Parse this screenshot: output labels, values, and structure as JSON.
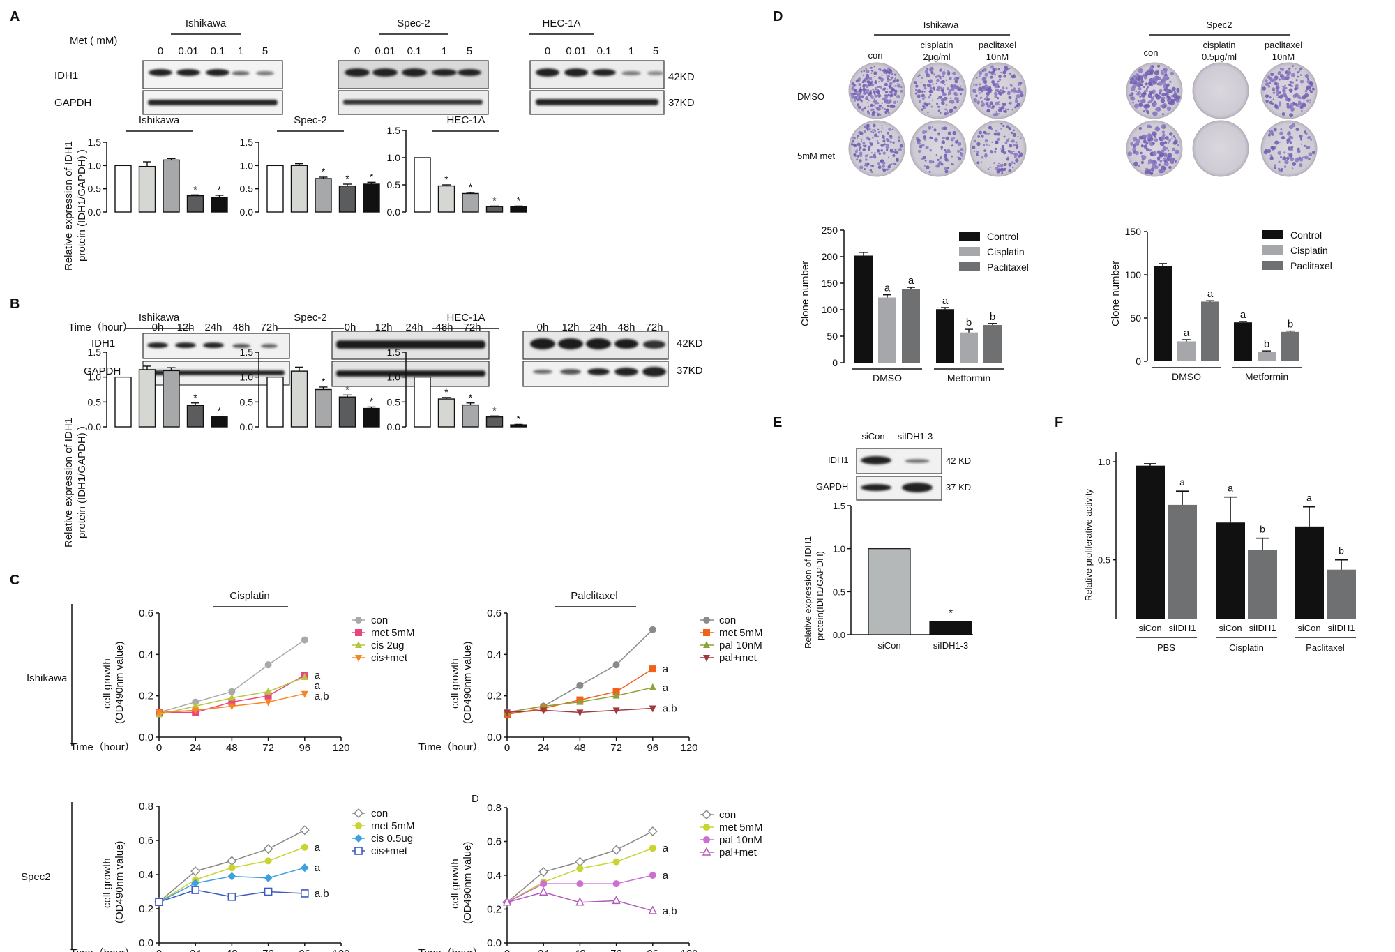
{
  "panels": {
    "A": {
      "letter": "A",
      "met_label": "Met ( mM)",
      "lanes": [
        "0",
        "0.01",
        "0.1",
        "1",
        "5"
      ],
      "cells": [
        "Ishikawa",
        "Spec-2",
        "HEC-1A"
      ],
      "row_labels": [
        "IDH1",
        "GAPDH"
      ],
      "kd": [
        "42KD",
        "37KD"
      ],
      "ylabel1": "Relative expression  of IDH1",
      "ylabel2": "protein (IDH1/GAPDH) )"
    },
    "B": {
      "letter": "B",
      "time_label": "Time（hour）",
      "lanes": [
        "0h",
        "12h",
        "24h",
        "48h",
        "72h"
      ],
      "cells": [
        "Ishikawa",
        "Spec-2",
        "HEC-1A"
      ],
      "row_labels": [
        "IDH1",
        "GAPDH"
      ],
      "kd": [
        "42KD",
        "37KD"
      ],
      "ylabel1": "Relative expression  of IDH1",
      "ylabel2": "protein (IDH1/GAPDH) )"
    },
    "C": {
      "letter": "C",
      "headers": [
        "Cisplatin",
        "Palclitaxel"
      ],
      "rows": [
        "Ishikawa",
        "Spec2"
      ],
      "d_label": "D",
      "ylabel1": "cell growth",
      "ylabel2": "(OD490nm value)",
      "xlabel": "Time（hour）"
    },
    "D": {
      "letter": "D",
      "groups": [
        {
          "cell": "Ishikawa",
          "cols": [
            "con",
            "cisplatin",
            "2μg/ml",
            "paclitaxel",
            "10nM"
          ]
        },
        {
          "cell": "Spec2",
          "cols": [
            "con",
            "cisplatin",
            "0.5μg/ml",
            "paclitaxel",
            "10nM"
          ]
        }
      ],
      "rows": [
        "DMSO",
        "5mM met"
      ],
      "ylabel": "Clone number",
      "legend": [
        "Control",
        "Cisplatin",
        "Paclitaxel"
      ],
      "groups_x": [
        "DMSO",
        "Metformin"
      ]
    },
    "E": {
      "letter": "E",
      "lanes": [
        "siCon",
        "siIDH1-3"
      ],
      "row_labels": [
        "IDH1",
        "GAPDH"
      ],
      "kd": [
        "42 KD",
        "37 KD"
      ],
      "ylabel1": "Relative expression  of IDH1",
      "ylabel2": "protein(IDH1/GAPDH)"
    },
    "F": {
      "letter": "F",
      "ylabel": "Relative proliferative activity",
      "groups": [
        "PBS",
        "Cisplatin",
        "Paclitaxel"
      ]
    }
  },
  "chart_data": [
    {
      "id": "A1",
      "type": "bar",
      "title": "Ishikawa",
      "categories": [
        "0",
        "0.01",
        "0.1",
        "1",
        "5"
      ],
      "values": [
        1.0,
        0.98,
        1.12,
        0.35,
        0.32
      ],
      "errors": [
        0,
        0.1,
        0.03,
        0.02,
        0.04
      ],
      "sig": [
        "",
        "",
        "",
        "*",
        "*"
      ],
      "ylim": [
        0,
        1.5
      ],
      "yticks": [
        0.0,
        0.5,
        1.0,
        1.5
      ],
      "colors": [
        "#ffffff",
        "#d5d8d2",
        "#a6a8aa",
        "#5b5c5e",
        "#111111"
      ]
    },
    {
      "id": "A2",
      "type": "bar",
      "title": "Spec-2",
      "categories": [
        "0",
        "0.01",
        "0.1",
        "1",
        "5"
      ],
      "values": [
        1.0,
        1.0,
        0.72,
        0.56,
        0.6
      ],
      "errors": [
        0,
        0.04,
        0.03,
        0.04,
        0.04
      ],
      "sig": [
        "",
        "",
        "*",
        "*",
        "*"
      ],
      "ylim": [
        0,
        1.5
      ],
      "yticks": [
        0.0,
        0.5,
        1.0,
        1.5
      ],
      "colors": [
        "#ffffff",
        "#d5d8d2",
        "#a6a8aa",
        "#5b5c5e",
        "#111111"
      ]
    },
    {
      "id": "A3",
      "type": "bar",
      "title": "HEC-1A",
      "categories": [
        "0",
        "0.01",
        "0.1",
        "1",
        "5"
      ],
      "values": [
        1.0,
        0.48,
        0.34,
        0.1,
        0.1
      ],
      "errors": [
        0,
        0.02,
        0.02,
        0.01,
        0.01
      ],
      "sig": [
        "",
        "*",
        "*",
        "*",
        "*"
      ],
      "ylim": [
        0,
        1.5
      ],
      "yticks": [
        0.0,
        0.5,
        1.0,
        1.5
      ],
      "colors": [
        "#ffffff",
        "#d5d8d2",
        "#a6a8aa",
        "#5b5c5e",
        "#111111"
      ]
    },
    {
      "id": "B1",
      "type": "bar",
      "title": "Ishikawa",
      "categories": [
        "0h",
        "12h",
        "24h",
        "48h",
        "72h"
      ],
      "values": [
        1.0,
        1.15,
        1.13,
        0.43,
        0.2
      ],
      "errors": [
        0,
        0.07,
        0.06,
        0.05,
        0.01
      ],
      "sig": [
        "",
        "",
        "",
        "*",
        "*"
      ],
      "ylim": [
        0,
        1.5
      ],
      "yticks": [
        0.0,
        0.5,
        1.0,
        1.5
      ],
      "colors": [
        "#ffffff",
        "#d5d8d2",
        "#a6a8aa",
        "#5b5c5e",
        "#111111"
      ]
    },
    {
      "id": "B2",
      "type": "bar",
      "title": "Spec-2",
      "categories": [
        "0h",
        "12h",
        "24h",
        "48h",
        "72h"
      ],
      "values": [
        1.0,
        1.12,
        0.75,
        0.6,
        0.37
      ],
      "errors": [
        0,
        0.08,
        0.05,
        0.04,
        0.03
      ],
      "sig": [
        "",
        "",
        "*",
        "*",
        "*"
      ],
      "ylim": [
        0,
        1.5
      ],
      "yticks": [
        0.0,
        0.5,
        1.0,
        1.5
      ],
      "colors": [
        "#ffffff",
        "#d5d8d2",
        "#a6a8aa",
        "#5b5c5e",
        "#111111"
      ]
    },
    {
      "id": "B3",
      "type": "bar",
      "title": "HEC-1A",
      "categories": [
        "0h",
        "12h",
        "24h",
        "48h",
        "72h"
      ],
      "values": [
        1.0,
        0.56,
        0.44,
        0.2,
        0.04
      ],
      "errors": [
        0,
        0.03,
        0.04,
        0.02,
        0.01
      ],
      "sig": [
        "",
        "*",
        "*",
        "*",
        "*"
      ],
      "ylim": [
        0,
        1.5
      ],
      "yticks": [
        0.0,
        0.5,
        1.0,
        1.5
      ],
      "colors": [
        "#ffffff",
        "#d5d8d2",
        "#a6a8aa",
        "#5b5c5e",
        "#111111"
      ]
    },
    {
      "id": "C1",
      "type": "line",
      "title": "Cisplatin",
      "x": [
        0,
        24,
        48,
        72,
        96
      ],
      "xticks": [
        0,
        24,
        48,
        72,
        96,
        120
      ],
      "ylim": [
        0,
        0.6
      ],
      "yticks": [
        0.0,
        0.2,
        0.4,
        0.6
      ],
      "series": [
        {
          "name": "con",
          "color": "#a9a9a9",
          "marker": "circle",
          "values": [
            0.12,
            0.17,
            0.22,
            0.35,
            0.47
          ]
        },
        {
          "name": "met 5mM",
          "color": "#e8457f",
          "marker": "square",
          "values": [
            0.12,
            0.12,
            0.17,
            0.2,
            0.3
          ]
        },
        {
          "name": "cis 2ug",
          "color": "#b6c73e",
          "marker": "triangle",
          "values": [
            0.11,
            0.15,
            0.19,
            0.22,
            0.29
          ]
        },
        {
          "name": "cis+met",
          "color": "#f6861f",
          "marker": "tri-down",
          "values": [
            0.12,
            0.13,
            0.15,
            0.17,
            0.21
          ]
        }
      ],
      "end_labels": [
        "a",
        "a",
        "a,b"
      ]
    },
    {
      "id": "C2",
      "type": "line",
      "title": "Palclitaxel",
      "x": [
        0,
        24,
        48,
        72,
        96
      ],
      "xticks": [
        0,
        24,
        48,
        72,
        96,
        120
      ],
      "ylim": [
        0,
        0.6
      ],
      "yticks": [
        0.0,
        0.2,
        0.4,
        0.6
      ],
      "series": [
        {
          "name": "con",
          "color": "#8a8a8a",
          "marker": "circle",
          "values": [
            0.12,
            0.15,
            0.25,
            0.35,
            0.52
          ]
        },
        {
          "name": "met 5mM",
          "color": "#f2601b",
          "marker": "square",
          "values": [
            0.11,
            0.14,
            0.18,
            0.22,
            0.33
          ]
        },
        {
          "name": "pal 10nM",
          "color": "#8ea13a",
          "marker": "triangle",
          "values": [
            0.12,
            0.15,
            0.17,
            0.2,
            0.24
          ]
        },
        {
          "name": "pal+met",
          "color": "#a2373c",
          "marker": "tri-down",
          "values": [
            0.12,
            0.13,
            0.12,
            0.13,
            0.14
          ]
        }
      ],
      "end_labels": [
        "a",
        "a",
        "a,b"
      ]
    },
    {
      "id": "C3",
      "type": "line",
      "x": [
        0,
        24,
        48,
        72,
        96
      ],
      "xticks": [
        0,
        24,
        48,
        72,
        96,
        120
      ],
      "ylim": [
        0,
        0.8
      ],
      "yticks": [
        0.0,
        0.2,
        0.4,
        0.6,
        0.8
      ],
      "series": [
        {
          "name": "con",
          "color": "#888888",
          "marker": "diamond-open",
          "values": [
            0.24,
            0.42,
            0.48,
            0.55,
            0.66
          ]
        },
        {
          "name": "met 5mM",
          "color": "#c9d430",
          "marker": "circle",
          "values": [
            0.24,
            0.37,
            0.44,
            0.48,
            0.56
          ]
        },
        {
          "name": "cis 0.5ug",
          "color": "#3fa0e0",
          "marker": "diamond",
          "values": [
            0.24,
            0.35,
            0.39,
            0.38,
            0.44
          ]
        },
        {
          "name": "cis+met",
          "color": "#3c59c2",
          "marker": "square-open",
          "values": [
            0.24,
            0.31,
            0.27,
            0.3,
            0.29
          ]
        }
      ],
      "end_labels": [
        "a",
        "a",
        "a,b"
      ]
    },
    {
      "id": "C4",
      "type": "line",
      "x": [
        0,
        24,
        48,
        72,
        96
      ],
      "xticks": [
        0,
        24,
        48,
        72,
        96,
        120
      ],
      "ylim": [
        0,
        0.8
      ],
      "yticks": [
        0.0,
        0.2,
        0.4,
        0.6,
        0.8
      ],
      "series": [
        {
          "name": "con",
          "color": "#888888",
          "marker": "diamond-open",
          "values": [
            0.24,
            0.42,
            0.48,
            0.55,
            0.66
          ]
        },
        {
          "name": "met 5mM",
          "color": "#c9d430",
          "marker": "circle",
          "values": [
            0.24,
            0.36,
            0.44,
            0.48,
            0.56
          ]
        },
        {
          "name": "pal 10nM",
          "color": "#cc6fd0",
          "marker": "circle",
          "values": [
            0.24,
            0.35,
            0.35,
            0.35,
            0.4
          ]
        },
        {
          "name": "pal+met",
          "color": "#b25ab8",
          "marker": "tri-open",
          "values": [
            0.24,
            0.3,
            0.24,
            0.25,
            0.19
          ]
        }
      ],
      "end_labels": [
        "a",
        "a",
        "a,b"
      ]
    },
    {
      "id": "D1",
      "type": "bar",
      "categories": [
        "DMSO",
        "Metformin"
      ],
      "series_names": [
        "Control",
        "Cisplatin",
        "Paclitaxel"
      ],
      "colors": [
        "#111111",
        "#a5a7aa",
        "#6f7072"
      ],
      "values": [
        [
          202,
          123,
          139
        ],
        [
          101,
          57,
          71
        ]
      ],
      "errors": [
        [
          6,
          5,
          3
        ],
        [
          3,
          6,
          3
        ]
      ],
      "sig": [
        [
          "",
          "a",
          "a"
        ],
        [
          "a",
          "b",
          "b"
        ]
      ],
      "ylim": [
        0,
        250
      ],
      "yticks": [
        0,
        50,
        100,
        150,
        200,
        250
      ]
    },
    {
      "id": "D2",
      "type": "bar",
      "categories": [
        "DMSO",
        "Metformin"
      ],
      "series_names": [
        "Control",
        "Cisplatin",
        "Paclitaxel"
      ],
      "colors": [
        "#111111",
        "#a5a7aa",
        "#6f7072"
      ],
      "values": [
        [
          110,
          23,
          69
        ],
        [
          45,
          11,
          34
        ]
      ],
      "errors": [
        [
          3,
          2,
          1
        ],
        [
          1,
          1,
          1
        ]
      ],
      "sig": [
        [
          "",
          "a",
          "a"
        ],
        [
          "a",
          "b",
          "b"
        ]
      ],
      "ylim": [
        0,
        150
      ],
      "yticks": [
        0,
        50,
        100,
        150
      ]
    },
    {
      "id": "E1",
      "type": "bar",
      "categories": [
        "siCon",
        "siIDH1-3"
      ],
      "values": [
        1.0,
        0.15
      ],
      "sig": [
        "",
        "*"
      ],
      "colors": [
        "#b5b8b9",
        "#111111"
      ],
      "ylim": [
        0,
        1.5
      ],
      "yticks": [
        0.0,
        0.5,
        1.0,
        1.5
      ]
    },
    {
      "id": "F1",
      "type": "bar",
      "groups": [
        "PBS",
        "Cisplatin",
        "Paclitaxel"
      ],
      "categories": [
        "siCon",
        "siIDH1"
      ],
      "colors": [
        "#111111",
        "#6f7072"
      ],
      "values": [
        [
          0.98,
          0.78
        ],
        [
          0.69,
          0.55
        ],
        [
          0.67,
          0.45
        ]
      ],
      "errors": [
        [
          0.01,
          0.07
        ],
        [
          0.13,
          0.06
        ],
        [
          0.1,
          0.05
        ]
      ],
      "sig": [
        [
          "",
          "a"
        ],
        [
          "a",
          "b"
        ],
        [
          "a",
          "b"
        ]
      ],
      "ylim": [
        0.2,
        1.05
      ],
      "yticks": [
        0.5,
        1.0
      ]
    }
  ]
}
